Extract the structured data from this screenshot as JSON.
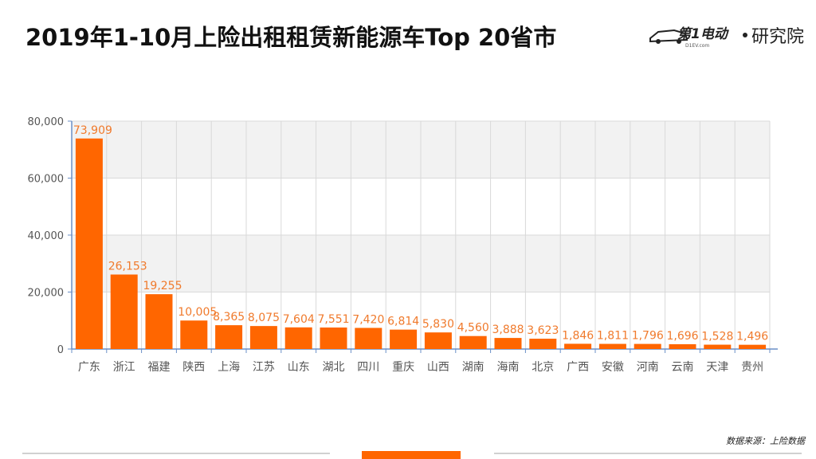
{
  "header": {
    "title": "2019年1-10月上险出租租赁新能源车Top  20省市",
    "logo_text": "第1电动",
    "logo_site": "D1EV.com",
    "logo_sub": "研究院"
  },
  "source": "数据来源：上险数据",
  "colors": {
    "bar": "#ff6600",
    "label": "#f07a2c",
    "axis": "#6a8fc7",
    "band": "#f2f2f2"
  },
  "chart_data": {
    "type": "bar",
    "title": "",
    "xlabel": "",
    "ylabel": "",
    "ylim": [
      0,
      80000
    ],
    "yticks": [
      0,
      20000,
      40000,
      60000,
      80000
    ],
    "ytick_labels": [
      "0",
      "20,000",
      "40,000",
      "60,000",
      "80,000"
    ],
    "grid": true,
    "categories": [
      "广东",
      "浙江",
      "福建",
      "陕西",
      "上海",
      "江苏",
      "山东",
      "湖北",
      "四川",
      "重庆",
      "山西",
      "湖南",
      "海南",
      "北京",
      "广西",
      "安徽",
      "河南",
      "云南",
      "天津",
      "贵州"
    ],
    "values": [
      73909,
      26153,
      19255,
      10005,
      8365,
      8075,
      7604,
      7551,
      7420,
      6814,
      5830,
      4560,
      3888,
      3623,
      1846,
      1811,
      1796,
      1696,
      1528,
      1496
    ],
    "value_labels": [
      "73,909",
      "26,153",
      "19,255",
      "10,005",
      "8,365",
      "8,075",
      "7,604",
      "7,551",
      "7,420",
      "6,814",
      "5,830",
      "4,560",
      "3,888",
      "3,623",
      "1,846",
      "1,811",
      "1,796",
      "1,696",
      "1,528",
      "1,496"
    ]
  }
}
